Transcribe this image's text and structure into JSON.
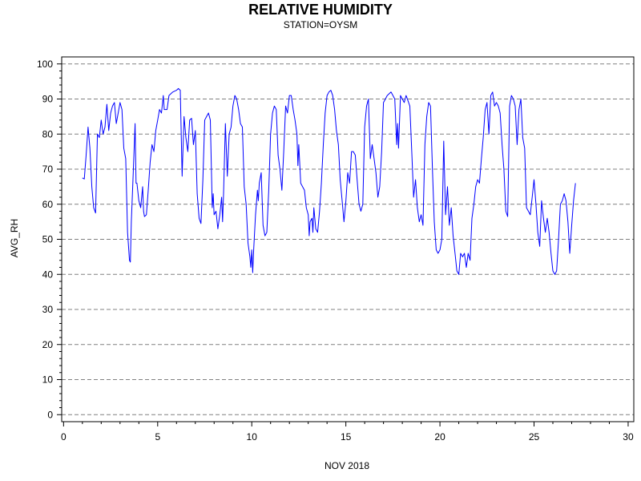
{
  "chart_data": {
    "type": "line",
    "title": "RELATIVE HUMIDITY",
    "subtitle": "STATION=OYSM",
    "xlabel": "NOV 2018",
    "ylabel": "AVG_RH",
    "xlim": [
      -0.1,
      30.3
    ],
    "ylim": [
      -2,
      102
    ],
    "x_ticks": [
      0,
      5,
      10,
      15,
      20,
      25,
      30
    ],
    "y_ticks": [
      0,
      10,
      20,
      30,
      40,
      50,
      60,
      70,
      80,
      90,
      100
    ],
    "grid": "horizontal dashed at major y ticks",
    "colors": {
      "line": "#0000ff",
      "grid": "#808080",
      "axis": "#000000"
    },
    "series": [
      {
        "values": [
          [
            1.0,
            67.5
          ],
          [
            1.1,
            67.2
          ],
          [
            1.2,
            74
          ],
          [
            1.3,
            82
          ],
          [
            1.4,
            76
          ],
          [
            1.5,
            65
          ],
          [
            1.6,
            59
          ],
          [
            1.7,
            57.5
          ],
          [
            1.8,
            80
          ],
          [
            1.9,
            79
          ],
          [
            2.0,
            84
          ],
          [
            2.1,
            80
          ],
          [
            2.2,
            82
          ],
          [
            2.3,
            88.5
          ],
          [
            2.4,
            81
          ],
          [
            2.5,
            86
          ],
          [
            2.6,
            88
          ],
          [
            2.7,
            89
          ],
          [
            2.8,
            83
          ],
          [
            2.9,
            86
          ],
          [
            3.0,
            89
          ],
          [
            3.1,
            87
          ],
          [
            3.2,
            76
          ],
          [
            3.3,
            73
          ],
          [
            3.4,
            52
          ],
          [
            3.5,
            44
          ],
          [
            3.55,
            43.5
          ],
          [
            3.6,
            55
          ],
          [
            3.7,
            69
          ],
          [
            3.8,
            83
          ],
          [
            3.85,
            66
          ],
          [
            3.9,
            66
          ],
          [
            4.0,
            61
          ],
          [
            4.1,
            59
          ],
          [
            4.2,
            65
          ],
          [
            4.25,
            58
          ],
          [
            4.3,
            56.5
          ],
          [
            4.4,
            57
          ],
          [
            4.5,
            64
          ],
          [
            4.6,
            72
          ],
          [
            4.7,
            77
          ],
          [
            4.8,
            75
          ],
          [
            4.9,
            81
          ],
          [
            5.0,
            84
          ],
          [
            5.1,
            87
          ],
          [
            5.2,
            86
          ],
          [
            5.3,
            91
          ],
          [
            5.35,
            87
          ],
          [
            5.5,
            87
          ],
          [
            5.6,
            91
          ],
          [
            5.8,
            92
          ],
          [
            6.0,
            92.5
          ],
          [
            6.1,
            93
          ],
          [
            6.2,
            92.5
          ],
          [
            6.3,
            68
          ],
          [
            6.4,
            85
          ],
          [
            6.5,
            79
          ],
          [
            6.6,
            75
          ],
          [
            6.7,
            84
          ],
          [
            6.8,
            84.5
          ],
          [
            6.9,
            77
          ],
          [
            7.0,
            81
          ],
          [
            7.1,
            63
          ],
          [
            7.2,
            56
          ],
          [
            7.3,
            54.5
          ],
          [
            7.4,
            67
          ],
          [
            7.5,
            84
          ],
          [
            7.6,
            85
          ],
          [
            7.7,
            86
          ],
          [
            7.8,
            84
          ],
          [
            7.9,
            59
          ],
          [
            7.95,
            63
          ],
          [
            8.0,
            57
          ],
          [
            8.1,
            58
          ],
          [
            8.2,
            53
          ],
          [
            8.3,
            57
          ],
          [
            8.4,
            62
          ],
          [
            8.45,
            55
          ],
          [
            8.5,
            63
          ],
          [
            8.6,
            83
          ],
          [
            8.7,
            68
          ],
          [
            8.8,
            80
          ],
          [
            8.9,
            82
          ],
          [
            9.0,
            88
          ],
          [
            9.1,
            91
          ],
          [
            9.2,
            90
          ],
          [
            9.3,
            87
          ],
          [
            9.4,
            83
          ],
          [
            9.5,
            82
          ],
          [
            9.6,
            65
          ],
          [
            9.7,
            60
          ],
          [
            9.8,
            49
          ],
          [
            9.9,
            45
          ],
          [
            9.95,
            42
          ],
          [
            10.0,
            47
          ],
          [
            10.05,
            40.5
          ],
          [
            10.1,
            47
          ],
          [
            10.2,
            57
          ],
          [
            10.3,
            64
          ],
          [
            10.35,
            61
          ],
          [
            10.4,
            66
          ],
          [
            10.5,
            69
          ],
          [
            10.6,
            54
          ],
          [
            10.7,
            51
          ],
          [
            10.8,
            52
          ],
          [
            10.9,
            64
          ],
          [
            11.0,
            80
          ],
          [
            11.1,
            86
          ],
          [
            11.2,
            88
          ],
          [
            11.3,
            87
          ],
          [
            11.4,
            74
          ],
          [
            11.5,
            70
          ],
          [
            11.6,
            64
          ],
          [
            11.7,
            75
          ],
          [
            11.8,
            88
          ],
          [
            11.9,
            86
          ],
          [
            12.0,
            91
          ],
          [
            12.1,
            91
          ],
          [
            12.2,
            87
          ],
          [
            12.3,
            84
          ],
          [
            12.4,
            80
          ],
          [
            12.45,
            71
          ],
          [
            12.5,
            77
          ],
          [
            12.6,
            66
          ],
          [
            12.7,
            65
          ],
          [
            12.8,
            64
          ],
          [
            12.9,
            59
          ],
          [
            13.0,
            57
          ],
          [
            13.05,
            51
          ],
          [
            13.1,
            55
          ],
          [
            13.2,
            56
          ],
          [
            13.25,
            52
          ],
          [
            13.3,
            59
          ],
          [
            13.4,
            53
          ],
          [
            13.5,
            52
          ],
          [
            13.6,
            58
          ],
          [
            13.7,
            66
          ],
          [
            13.8,
            77
          ],
          [
            13.9,
            86
          ],
          [
            14.0,
            91
          ],
          [
            14.1,
            92
          ],
          [
            14.2,
            92.5
          ],
          [
            14.3,
            91
          ],
          [
            14.4,
            87
          ],
          [
            14.5,
            81
          ],
          [
            14.6,
            77
          ],
          [
            14.7,
            67
          ],
          [
            14.8,
            61
          ],
          [
            14.9,
            55
          ],
          [
            15.0,
            61
          ],
          [
            15.1,
            69
          ],
          [
            15.2,
            66
          ],
          [
            15.3,
            75
          ],
          [
            15.4,
            75
          ],
          [
            15.5,
            74
          ],
          [
            15.6,
            67
          ],
          [
            15.7,
            60
          ],
          [
            15.8,
            58
          ],
          [
            15.9,
            60
          ],
          [
            16.0,
            82
          ],
          [
            16.1,
            88
          ],
          [
            16.2,
            90
          ],
          [
            16.3,
            73
          ],
          [
            16.4,
            77
          ],
          [
            16.5,
            73
          ],
          [
            16.6,
            69
          ],
          [
            16.7,
            62
          ],
          [
            16.8,
            65
          ],
          [
            16.9,
            75
          ],
          [
            17.0,
            89
          ],
          [
            17.1,
            90
          ],
          [
            17.2,
            91
          ],
          [
            17.4,
            92
          ],
          [
            17.5,
            91
          ],
          [
            17.6,
            90
          ],
          [
            17.7,
            77
          ],
          [
            17.75,
            83
          ],
          [
            17.8,
            76
          ],
          [
            17.9,
            91
          ],
          [
            18.0,
            90
          ],
          [
            18.1,
            89
          ],
          [
            18.2,
            91
          ],
          [
            18.3,
            89.5
          ],
          [
            18.4,
            88
          ],
          [
            18.5,
            75
          ],
          [
            18.6,
            62
          ],
          [
            18.7,
            67
          ],
          [
            18.8,
            59
          ],
          [
            18.9,
            55
          ],
          [
            19.0,
            57
          ],
          [
            19.1,
            54
          ],
          [
            19.2,
            77
          ],
          [
            19.3,
            85
          ],
          [
            19.4,
            89
          ],
          [
            19.5,
            88
          ],
          [
            19.6,
            70
          ],
          [
            19.7,
            55
          ],
          [
            19.8,
            47
          ],
          [
            19.9,
            46
          ],
          [
            20.0,
            47
          ],
          [
            20.1,
            50
          ],
          [
            20.2,
            78
          ],
          [
            20.3,
            57
          ],
          [
            20.4,
            65
          ],
          [
            20.5,
            54
          ],
          [
            20.6,
            59
          ],
          [
            20.7,
            51
          ],
          [
            20.8,
            46
          ],
          [
            20.9,
            41
          ],
          [
            21.0,
            40
          ],
          [
            21.1,
            46
          ],
          [
            21.2,
            45
          ],
          [
            21.3,
            46
          ],
          [
            21.4,
            42
          ],
          [
            21.5,
            46
          ],
          [
            21.6,
            44
          ],
          [
            21.7,
            56
          ],
          [
            21.8,
            60
          ],
          [
            21.9,
            65
          ],
          [
            22.0,
            67
          ],
          [
            22.1,
            66
          ],
          [
            22.2,
            73
          ],
          [
            22.3,
            79
          ],
          [
            22.4,
            87
          ],
          [
            22.5,
            89
          ],
          [
            22.6,
            80
          ],
          [
            22.7,
            91
          ],
          [
            22.8,
            92
          ],
          [
            22.9,
            88
          ],
          [
            23.0,
            89
          ],
          [
            23.1,
            88
          ],
          [
            23.2,
            86
          ],
          [
            23.3,
            77
          ],
          [
            23.4,
            70
          ],
          [
            23.5,
            58
          ],
          [
            23.6,
            56.5
          ],
          [
            23.7,
            88
          ],
          [
            23.8,
            91
          ],
          [
            23.9,
            90
          ],
          [
            24.0,
            88
          ],
          [
            24.1,
            77
          ],
          [
            24.2,
            87
          ],
          [
            24.3,
            90
          ],
          [
            24.4,
            79
          ],
          [
            24.5,
            76
          ],
          [
            24.6,
            59
          ],
          [
            24.7,
            58
          ],
          [
            24.8,
            57
          ],
          [
            24.9,
            62
          ],
          [
            25.0,
            67
          ],
          [
            25.1,
            60
          ],
          [
            25.2,
            52
          ],
          [
            25.3,
            48
          ],
          [
            25.4,
            61
          ],
          [
            25.5,
            56
          ],
          [
            25.6,
            52
          ],
          [
            25.7,
            56
          ],
          [
            25.8,
            52
          ],
          [
            25.9,
            46
          ],
          [
            26.0,
            41
          ],
          [
            26.1,
            40
          ],
          [
            26.2,
            41
          ],
          [
            26.3,
            50
          ],
          [
            26.4,
            60
          ],
          [
            26.5,
            61
          ],
          [
            26.6,
            63
          ],
          [
            26.7,
            61
          ],
          [
            26.8,
            55
          ],
          [
            26.9,
            46
          ],
          [
            27.0,
            54
          ],
          [
            27.1,
            61
          ],
          [
            27.2,
            66
          ]
        ]
      }
    ]
  }
}
